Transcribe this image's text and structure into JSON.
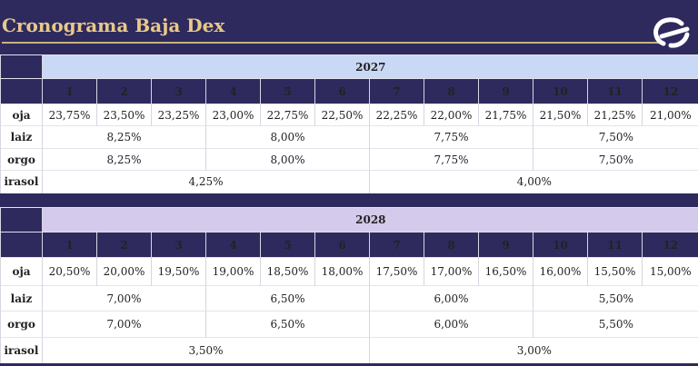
{
  "title": "Cronograma Baja Dex",
  "colors": {
    "navy": "#2e2a5e",
    "gold": "#e8c98a",
    "band_2027": "#c9d8f4",
    "band_2028": "#d4cbec"
  },
  "logo_icon": "swirl-logo-icon",
  "schedules": [
    {
      "year": "2027",
      "months": [
        "1",
        "2",
        "3",
        "4",
        "5",
        "6",
        "7",
        "8",
        "9",
        "10",
        "11",
        "12"
      ],
      "soja_label": "oja",
      "soja": [
        "23,75%",
        "23,50%",
        "23,25%",
        "23,00%",
        "22,75%",
        "22,50%",
        "22,25%",
        "22,00%",
        "21,75%",
        "21,50%",
        "21,25%",
        "21,00%"
      ],
      "maiz_label": "laiz",
      "maiz": [
        "8,25%",
        "8,00%",
        "7,75%",
        "7,50%"
      ],
      "sorgo_label": "orgo",
      "sorgo": [
        "8,25%",
        "8,00%",
        "7,75%",
        "7,50%"
      ],
      "girasol_label": "irasol",
      "girasol": [
        "4,25%",
        "4,00%"
      ]
    },
    {
      "year": "2028",
      "months": [
        "1",
        "2",
        "3",
        "4",
        "5",
        "6",
        "7",
        "8",
        "9",
        "10",
        "11",
        "12"
      ],
      "soja_label": "oja",
      "soja": [
        "20,50%",
        "20,00%",
        "19,50%",
        "19,00%",
        "18,50%",
        "18,00%",
        "17,50%",
        "17,00%",
        "16,50%",
        "16,00%",
        "15,50%",
        "15,00%"
      ],
      "maiz_label": "laiz",
      "maiz": [
        "7,00%",
        "6,50%",
        "6,00%",
        "5,50%"
      ],
      "sorgo_label": "orgo",
      "sorgo": [
        "7,00%",
        "6,50%",
        "6,00%",
        "5,50%"
      ],
      "girasol_label": "irasol",
      "girasol": [
        "3,50%",
        "3,00%"
      ]
    }
  ]
}
